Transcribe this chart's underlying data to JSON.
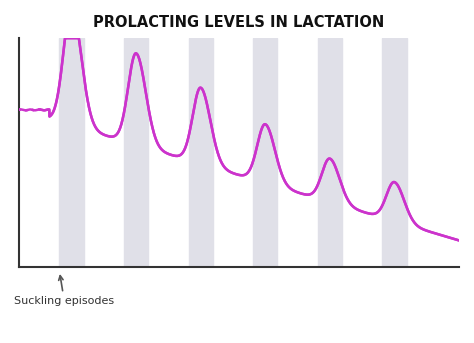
{
  "title": "PROLACTING LEVELS IN LACTATION",
  "title_fontsize": 10.5,
  "title_fontweight": "bold",
  "bg_color": "#ffffff",
  "band_color": "#e0e0e8",
  "line_color": "#cc33cc",
  "line_width": 1.8,
  "annotation_text": "Suckling episodes",
  "annotation_fontsize": 8,
  "n_episodes": 6,
  "baseline_start": 0.72,
  "baseline_end": 0.12,
  "peak_heights": [
    0.55,
    0.42,
    0.35,
    0.27,
    0.2,
    0.18
  ],
  "xlim": [
    0,
    10
  ],
  "ylim": [
    0,
    1.05
  ]
}
